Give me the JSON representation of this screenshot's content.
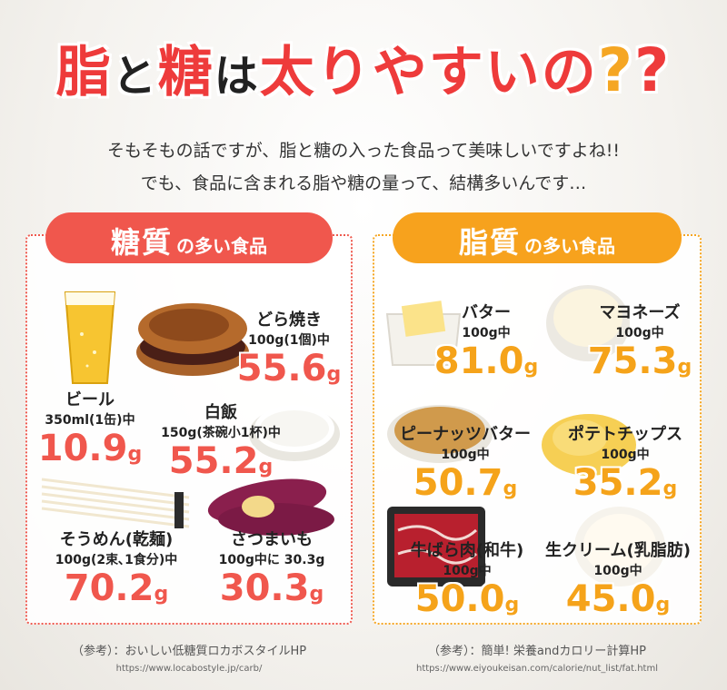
{
  "title": {
    "w1": "脂",
    "w2": "と",
    "w3": "糖",
    "w4": "は",
    "w5": "太りやすいの",
    "q1": "?",
    "q2": "?"
  },
  "intro": {
    "line1": "そもそもの話ですが、脂と糖の入った食品って美味しいですよね!!",
    "line2": "でも、食品に含まれる脂や糖の量って、結構多いんです…"
  },
  "sugar": {
    "header_big": "糖質",
    "header_small": "の多い食品",
    "items": [
      {
        "name": "どら焼き",
        "amount": "100g(1個)中",
        "value": "55.6",
        "unit": "g"
      },
      {
        "name": "ビール",
        "amount": "350ml(1缶)中",
        "value": "10.9",
        "unit": "g"
      },
      {
        "name": "白飯",
        "amount": "150g(茶碗小1杯)中",
        "value": "55.2",
        "unit": "g"
      },
      {
        "name": "そうめん(乾麺)",
        "amount": "100g(2束､1食分)中",
        "value": "70.2",
        "unit": "g"
      },
      {
        "name": "さつまいも",
        "amount": "100g中に 30.3g",
        "value": "30.3",
        "unit": "g"
      }
    ],
    "source": "（参考）：おいしい低糖質ロカボスタイルHP",
    "url": "https://www.locabostyle.jp/carb/"
  },
  "fat": {
    "header_big": "脂質",
    "header_small": "の多い食品",
    "items": [
      {
        "name": "バター",
        "amount": "100g中",
        "value": "81.0",
        "unit": "g"
      },
      {
        "name": "マヨネーズ",
        "amount": "100g中",
        "value": "75.3",
        "unit": "g"
      },
      {
        "name": "ピーナッツバター",
        "amount": "100g中",
        "value": "50.7",
        "unit": "g"
      },
      {
        "name": "ポテトチップス",
        "amount": "100g中",
        "value": "35.2",
        "unit": "g"
      },
      {
        "name": "牛ばら肉(和牛)",
        "amount": "100g中",
        "value": "50.0",
        "unit": "g"
      },
      {
        "name": "生クリーム(乳脂肪)",
        "amount": "100g中",
        "value": "45.0",
        "unit": "g"
      }
    ],
    "source": "（参考）：簡単! 栄養andカロリー計算HP",
    "url": "https://www.eiyoukeisan.com/calorie/nut_list/fat.html"
  },
  "colors": {
    "red": "#f0574d",
    "orange": "#f5a31a"
  }
}
